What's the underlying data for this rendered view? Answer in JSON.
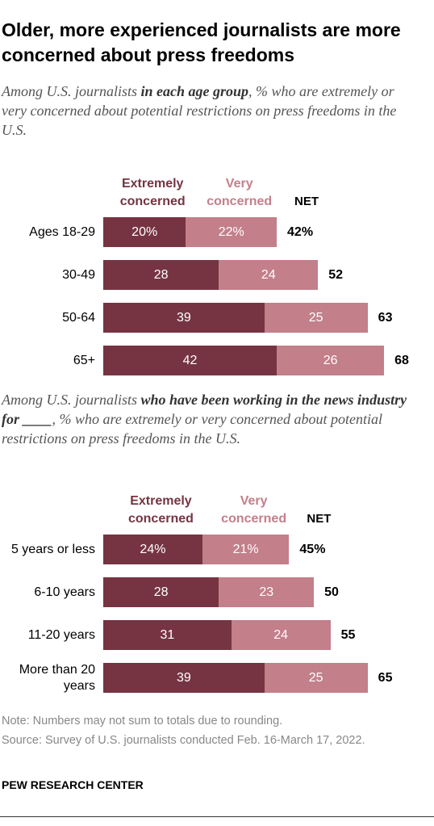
{
  "title": "Older, more experienced journalists are more concerned about press freedoms",
  "chart_data": [
    {
      "type": "bar",
      "subtitle": [
        "Among U.S. journalists ",
        "in each age group",
        ", % who are extremely or very concerned about potential restrictions on press freedoms in the U.S."
      ],
      "categories": [
        "Ages 18-29",
        "30-49",
        "50-64",
        "65+"
      ],
      "series": [
        {
          "name": "Extremely concerned",
          "color": "#763442",
          "values": [
            20,
            28,
            39,
            42
          ],
          "value_labels": [
            "20%",
            "28",
            "39",
            "42"
          ]
        },
        {
          "name": "Very concerned",
          "color": "#c37f8a",
          "values": [
            22,
            24,
            25,
            26
          ],
          "value_labels": [
            "22%",
            "24",
            "25",
            "26"
          ]
        }
      ],
      "net": {
        "name": "NET",
        "values": [
          42,
          52,
          63,
          68
        ],
        "value_labels": [
          "42%",
          "52",
          "63",
          "68"
        ]
      }
    },
    {
      "type": "bar",
      "subtitle": [
        "Among U.S. journalists ",
        "who have been working in the news industry for ____",
        ", % who are extremely or very concerned about potential restrictions on press freedoms in the U.S."
      ],
      "categories": [
        "5 years or less",
        "6-10 years",
        "11-20 years",
        "More than 20 years"
      ],
      "series": [
        {
          "name": "Extremely concerned",
          "color": "#763442",
          "values": [
            24,
            28,
            31,
            39
          ],
          "value_labels": [
            "24%",
            "28",
            "31",
            "39"
          ]
        },
        {
          "name": "Very concerned",
          "color": "#c37f8a",
          "values": [
            21,
            23,
            24,
            25
          ],
          "value_labels": [
            "21%",
            "23",
            "24",
            "25"
          ]
        }
      ],
      "net": {
        "name": "NET",
        "values": [
          45,
          50,
          55,
          65
        ],
        "value_labels": [
          "45%",
          "50",
          "55",
          "65"
        ]
      }
    }
  ],
  "note": "Note: Numbers may not sum to totals due to rounding.",
  "source": "Source: Survey of U.S. journalists conducted Feb. 16-March 17, 2022.",
  "footer": "PEW RESEARCH CENTER"
}
